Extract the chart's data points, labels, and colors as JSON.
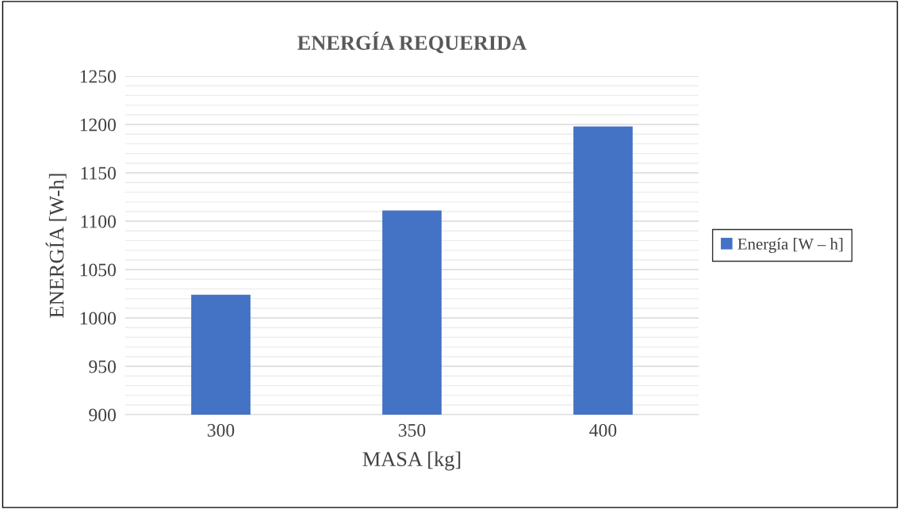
{
  "chart_data": {
    "type": "bar",
    "title": "ENERGÍA REQUERIDA",
    "xlabel": "MASA [kg]",
    "ylabel": "ENERGÍA [W-h]",
    "categories": [
      "300",
      "350",
      "400"
    ],
    "series": [
      {
        "name": "Energía [W – h]",
        "color": "#4472c4",
        "values": [
          1024,
          1111,
          1198
        ]
      }
    ],
    "ylim": [
      900,
      1250
    ],
    "yticks": [
      900,
      {
        "value": 910,
        "label": null
      },
      {
        "value": 920,
        "label": null
      },
      {
        "value": 930,
        "label": null
      },
      {
        "value": 940,
        "label": null
      },
      950,
      {
        "value": 960,
        "label": null
      },
      {
        "value": 970,
        "label": null
      },
      {
        "value": 980,
        "label": null
      },
      {
        "value": 990,
        "label": null
      },
      1000,
      {
        "value": 1010,
        "label": null
      },
      {
        "value": 1020,
        "label": null
      },
      {
        "value": 1030,
        "label": null
      },
      {
        "value": 1040,
        "label": null
      },
      1050,
      {
        "value": 1060,
        "label": null
      },
      {
        "value": 1070,
        "label": null
      },
      {
        "value": 1080,
        "label": null
      },
      {
        "value": 1090,
        "label": null
      },
      1100,
      {
        "value": 1110,
        "label": null
      },
      {
        "value": 1120,
        "label": null
      },
      {
        "value": 1130,
        "label": null
      },
      {
        "value": 1140,
        "label": null
      },
      1150,
      {
        "value": 1160,
        "label": null
      },
      {
        "value": 1170,
        "label": null
      },
      {
        "value": 1180,
        "label": null
      },
      {
        "value": 1190,
        "label": null
      },
      1200,
      {
        "value": 1210,
        "label": null
      },
      {
        "value": 1220,
        "label": null
      },
      {
        "value": 1230,
        "label": null
      },
      {
        "value": 1240,
        "label": null
      },
      1250
    ],
    "grid": "y",
    "legend": "right"
  }
}
